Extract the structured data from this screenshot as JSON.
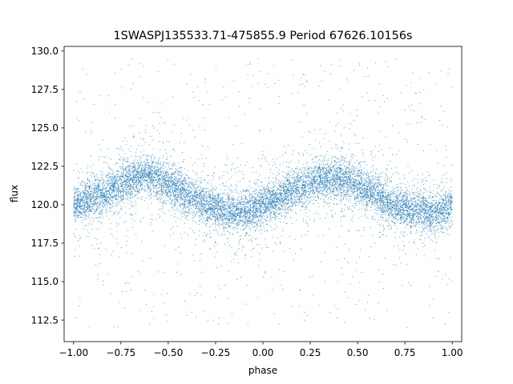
{
  "chart_data": {
    "type": "scatter",
    "title": "1SWASPJ135533.71-475855.9 Period 67626.10156s",
    "xlabel": "phase",
    "ylabel": "flux",
    "xlim": [
      -1.05,
      1.05
    ],
    "ylim": [
      111.1,
      130.3
    ],
    "xticks": [
      -1.0,
      -0.75,
      -0.5,
      -0.25,
      0.0,
      0.25,
      0.5,
      0.75,
      1.0
    ],
    "xtick_labels": [
      "−1.00",
      "−0.75",
      "−0.50",
      "−0.25",
      "0.00",
      "0.25",
      "0.50",
      "0.75",
      "1.00"
    ],
    "yticks": [
      112.5,
      115.0,
      117.5,
      120.0,
      122.5,
      125.0,
      127.5,
      130.0
    ],
    "ytick_labels": [
      "112.5",
      "115.0",
      "117.5",
      "120.0",
      "122.5",
      "125.0",
      "127.5",
      "130.0"
    ],
    "grid": false,
    "point_color": "#1f77b4",
    "series": [
      {
        "x_range": [
          -1.0,
          1.0
        ],
        "trend_x": [
          -1.0,
          -0.9,
          -0.8,
          -0.7,
          -0.6,
          -0.5,
          -0.4,
          -0.3,
          -0.2,
          -0.1,
          0.0,
          0.1,
          0.2,
          0.3,
          0.4,
          0.5,
          0.6,
          0.7,
          0.8,
          0.9,
          1.0
        ],
        "trend_y": [
          120.0,
          120.4,
          121.0,
          121.6,
          121.9,
          121.4,
          120.6,
          120.0,
          119.6,
          119.5,
          120.0,
          120.6,
          121.2,
          121.6,
          121.7,
          121.3,
          120.6,
          120.0,
          119.6,
          119.5,
          119.8
        ]
      }
    ]
  }
}
